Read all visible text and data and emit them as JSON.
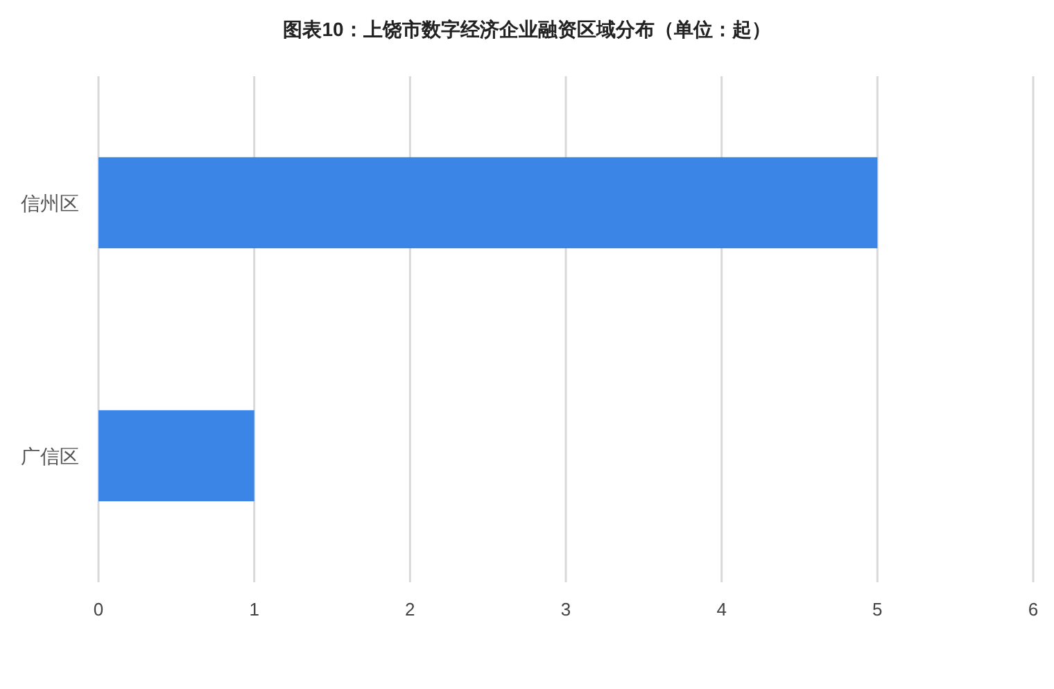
{
  "chart_data": {
    "type": "bar",
    "orientation": "horizontal",
    "title": "图表10：上饶市数字经济企业融资区域分布（单位：起）",
    "categories": [
      "信州区",
      "广信区"
    ],
    "values": [
      5,
      1
    ],
    "color": "#3a85e6",
    "xlim": [
      0,
      6
    ],
    "xticks": [
      0,
      1,
      2,
      3,
      4,
      5,
      6
    ],
    "grid": "x"
  }
}
